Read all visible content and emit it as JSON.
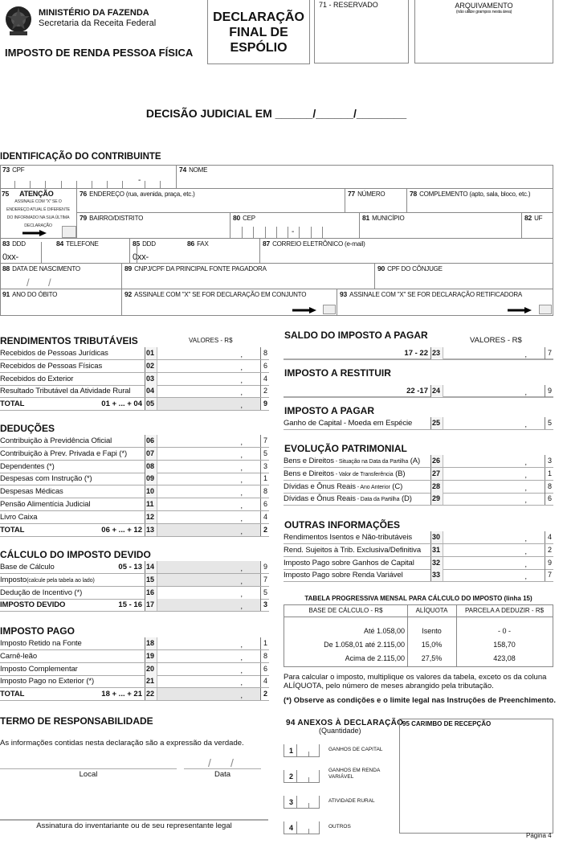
{
  "header": {
    "ministry": "MINISTÉRIO DA  FAZENDA",
    "secretariat": "Secretaria da Receita Federal",
    "tax": "IMPOSTO DE RENDA PESSOA FÍSICA",
    "doc_title": [
      "DECLARAÇÃO",
      "FINAL DE",
      "ESPÓLIO"
    ],
    "reserved": "71 - RESERVADO",
    "archive": "ARQUIVAMENTO",
    "archive_note": "(não utilize grampos nesta área)"
  },
  "decision": "DECISÃO JUDICIAL EM ______/______/________",
  "ident": {
    "title": "IDENTIFICAÇÃO DO CONTRIBUINTE",
    "f73": [
      "73",
      "CPF"
    ],
    "f74": [
      "74",
      "NOME"
    ],
    "f75": [
      "75",
      "ATENÇÃO"
    ],
    "f75_note": "ASSINALE COM \"X\" SE O ENDEREÇO ATUAL É DIFERENTE DO INFORMADO NA SUA ÚLTIMA DECLARAÇÃO",
    "f76": [
      "76",
      "ENDEREÇO (rua, avenida, praça, etc.)"
    ],
    "f77": [
      "77",
      "NÚMERO"
    ],
    "f78": [
      "78",
      "COMPLEMENTO (apto, sala, bloco, etc.)"
    ],
    "f79": [
      "79",
      "BAIRRO/DISTRITO"
    ],
    "f80": [
      "80",
      "CEP"
    ],
    "f81": [
      "81",
      "MUNICÍPIO"
    ],
    "f82": [
      "82",
      "UF"
    ],
    "f83": [
      "83",
      "DDD"
    ],
    "f84": [
      "84",
      "TELEFONE"
    ],
    "f85": [
      "85",
      "DDD"
    ],
    "f86": [
      "86",
      "FAX"
    ],
    "f87": [
      "87",
      "CORREIO ELETRÔNICO (e-mail)"
    ],
    "ddd_prefix": "0xx-",
    "dash": "-",
    "f88": [
      "88",
      "DATA DE NASCIMENTO"
    ],
    "f89": [
      "89",
      "CNPJ/CPF DA PRINCIPAL FONTE PAGADORA"
    ],
    "f90": [
      "90",
      "CPF DO CÔNJUGE"
    ],
    "f91": [
      "91",
      "ANO DO ÓBITO"
    ],
    "f92": [
      "92",
      "ASSINALE COM \"X\" SE  FOR DECLARAÇÃO EM CONJUNTO"
    ],
    "f93": [
      "93",
      "ASSINALE COM \"X\" SE  FOR DECLARAÇÃO  RETIFICADORA"
    ]
  },
  "values_label": "VALORES - R$",
  "rendimentos": {
    "title": "RENDIMENTOS TRIBUTÁVEIS",
    "rows": [
      {
        "label": "Recebidos de Pessoas Jurídicas",
        "code": "01",
        "check": "8"
      },
      {
        "label": "Recebidos de Pessoas Físicas",
        "code": "02",
        "check": "6"
      },
      {
        "label": "Recebidos do Exterior",
        "code": "03",
        "check": "4"
      },
      {
        "label": "Resultado Tributável da Atividade Rural",
        "code": "04",
        "check": "2"
      },
      {
        "label": "TOTAL",
        "formula": "01  + ... +  04",
        "code": "05",
        "check": "9",
        "total": true
      }
    ]
  },
  "deducoes": {
    "title": "DEDUÇÕES",
    "rows": [
      {
        "label": "Contribuição à Previdência Oficial",
        "code": "06",
        "check": "7"
      },
      {
        "label": "Contribuição à Prev. Privada e Fapi (*)",
        "code": "07",
        "check": "5"
      },
      {
        "label": "Dependentes (*)",
        "code": "08",
        "check": "3"
      },
      {
        "label": "Despesas com Instrução (*)",
        "code": "09",
        "check": "1"
      },
      {
        "label": "Despesas Médicas",
        "code": "10",
        "check": "8"
      },
      {
        "label": "Pensão Alimentícia Judicial",
        "code": "11",
        "check": "6"
      },
      {
        "label": "Livro Caixa",
        "code": "12",
        "check": "4"
      },
      {
        "label": "TOTAL",
        "formula": "06  + ... +  12",
        "code": "13",
        "check": "2",
        "total": true
      }
    ]
  },
  "calculo": {
    "title": "CÁLCULO DO IMPOSTO DEVIDO",
    "rows": [
      {
        "label": "Base de Cálculo",
        "formula": "05 - 13",
        "code": "14",
        "check": "9",
        "shaded": true
      },
      {
        "label": "Imposto",
        "label_small": "(calcule pela tabela ao lado)",
        "code": "15",
        "check": "7",
        "shaded": true
      },
      {
        "label": "Dedução de Incentivo (*)",
        "code": "16",
        "check": "5"
      },
      {
        "label": "IMPOSTO DEVIDO",
        "formula": "15 - 16",
        "code": "17",
        "check": "3",
        "total": true
      }
    ]
  },
  "pago": {
    "title": "IMPOSTO PAGO",
    "rows": [
      {
        "label": "Imposto Retido na Fonte",
        "code": "18",
        "check": "1"
      },
      {
        "label": "Carnê-leão",
        "code": "19",
        "check": "8"
      },
      {
        "label": "Imposto Complementar",
        "code": "20",
        "check": "6"
      },
      {
        "label": "Imposto Pago no Exterior (*)",
        "code": "21",
        "check": "4"
      },
      {
        "label": "TOTAL",
        "formula": "18 + ... +  21",
        "code": "22",
        "check": "2",
        "total": true
      }
    ]
  },
  "saldo": {
    "title": "SALDO DO IMPOSTO A PAGAR",
    "rows": [
      {
        "label": "",
        "formula": "17 - 22",
        "code": "23",
        "check": "7"
      }
    ]
  },
  "restituir": {
    "title": "IMPOSTO A RESTITUIR",
    "rows": [
      {
        "label": "",
        "formula": "22 -17",
        "code": "24",
        "check": "9"
      }
    ]
  },
  "apagar": {
    "title": "IMPOSTO A PAGAR",
    "rows": [
      {
        "label": "Ganho de Capital - Moeda em Espécie",
        "code": "25",
        "check": "5"
      }
    ]
  },
  "evolucao": {
    "title": "EVOLUÇÃO PATRIMONIAL",
    "rows": [
      {
        "label": "Bens e Direitos",
        "label_small": " - Situação na Data da Partilha",
        "label_end": " (A)",
        "code": "26",
        "check": "3"
      },
      {
        "label": "Bens e Direitos",
        "label_small": " - Valor de Transferência",
        "label_end": " (B)",
        "code": "27",
        "check": "1"
      },
      {
        "label": "Dívidas e Ônus Reais",
        "label_small": " - Ano Anterior",
        "label_end": " (C)",
        "code": "28",
        "check": "8"
      },
      {
        "label": "Dívidas e Ônus Reais",
        "label_small": " - Data da Partilha",
        "label_end": "  (D)",
        "code": "29",
        "check": "6"
      }
    ]
  },
  "outras": {
    "title": "OUTRAS INFORMAÇÕES",
    "rows": [
      {
        "label": "Rendimentos Isentos e Não-tributáveis",
        "code": "30",
        "check": "4"
      },
      {
        "label": "Rend. Sujeitos à Trib. Exclusiva/Definitiva",
        "code": "31",
        "check": "2"
      },
      {
        "label": "Imposto Pago sobre Ganhos de Capital",
        "code": "32",
        "check": "9"
      },
      {
        "label": "Imposto Pago sobre Renda Variável",
        "code": "33",
        "check": "7"
      }
    ]
  },
  "tabela": {
    "title": "TABELA PROGRESSIVA MENSAL PARA CÁLCULO DO IMPOSTO (linha 15)",
    "headers": [
      "BASE DE CÁLCULO - R$",
      "ALÍQUOTA",
      "PARCELA A DEDUZIR - R$"
    ],
    "rows": [
      [
        "Até 1.058,00",
        "Isento",
        "- 0 -"
      ],
      [
        "De 1.058,01 até 2.115,00",
        "15,0%",
        "158,70"
      ],
      [
        "Acima de 2.115,00",
        "27,5%",
        "423,08"
      ]
    ]
  },
  "note": "Para calcular o imposto, multiplique os valores da tabela, exceto os da coluna ALÍQUOTA, pelo número de meses abrangido pela tributação.",
  "observe": "(*) Observe as condições e o limite legal nas Instruções de Preenchimento.",
  "termo": {
    "title": "TERMO DE RESPONSABILIDADE",
    "text": "As informações contidas nesta declaração são a expressão da verdade.",
    "local": "Local",
    "data": "Data",
    "signature": "Assinatura do inventariante ou de seu representante legal"
  },
  "anexos": {
    "title": "94  ANEXOS À DECLARAÇÃO",
    "subtitle": "(Quantidade)",
    "items": [
      {
        "n": "1",
        "label": "GANHOS  DE CAPITAL"
      },
      {
        "n": "2",
        "label": "GANHOS EM RENDA VARIÁVEL"
      },
      {
        "n": "3",
        "label": "ATIVIDADE RURAL"
      },
      {
        "n": "4",
        "label": "OUTROS"
      }
    ]
  },
  "carimbo": "95  CARIMBO DE RECEPÇÃO",
  "page": "Página 4"
}
